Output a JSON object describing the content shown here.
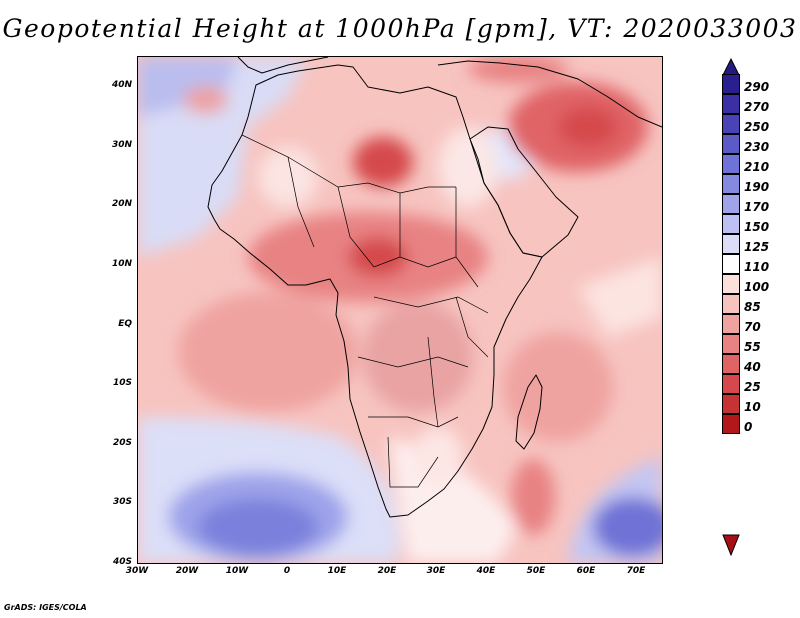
{
  "title": "Geopotential Height at 1000hPa [gpm], VT: 2020033003",
  "credit": "GrADS: IGES/COLA",
  "map": {
    "region": "Africa and surrounding oceans",
    "lon_range": [
      -30,
      75
    ],
    "lat_range": [
      -40,
      45
    ],
    "lat_labels": [
      "40N",
      "30N",
      "20N",
      "10N",
      "EQ",
      "10S",
      "20S",
      "30S",
      "40S"
    ],
    "lon_labels": [
      "30W",
      "20W",
      "10W",
      "0",
      "10E",
      "20E",
      "30E",
      "40E",
      "50E",
      "60E",
      "70E"
    ]
  },
  "colorbar": {
    "labels": [
      "290",
      "270",
      "250",
      "230",
      "210",
      "190",
      "170",
      "150",
      "125",
      "110",
      "100",
      "85",
      "70",
      "55",
      "40",
      "25",
      "10",
      "0"
    ],
    "colors": [
      "#2a1f8f",
      "#3b2fa6",
      "#4a43b8",
      "#5b5bc8",
      "#6f72d6",
      "#8589e0",
      "#9ea3ea",
      "#bcc0f2",
      "#dcdef8",
      "#ffffff",
      "#fbe0dc",
      "#f6c3be",
      "#efa3a0",
      "#e88283",
      "#e06466",
      "#d5494c",
      "#c63335",
      "#b2181b"
    ]
  }
}
